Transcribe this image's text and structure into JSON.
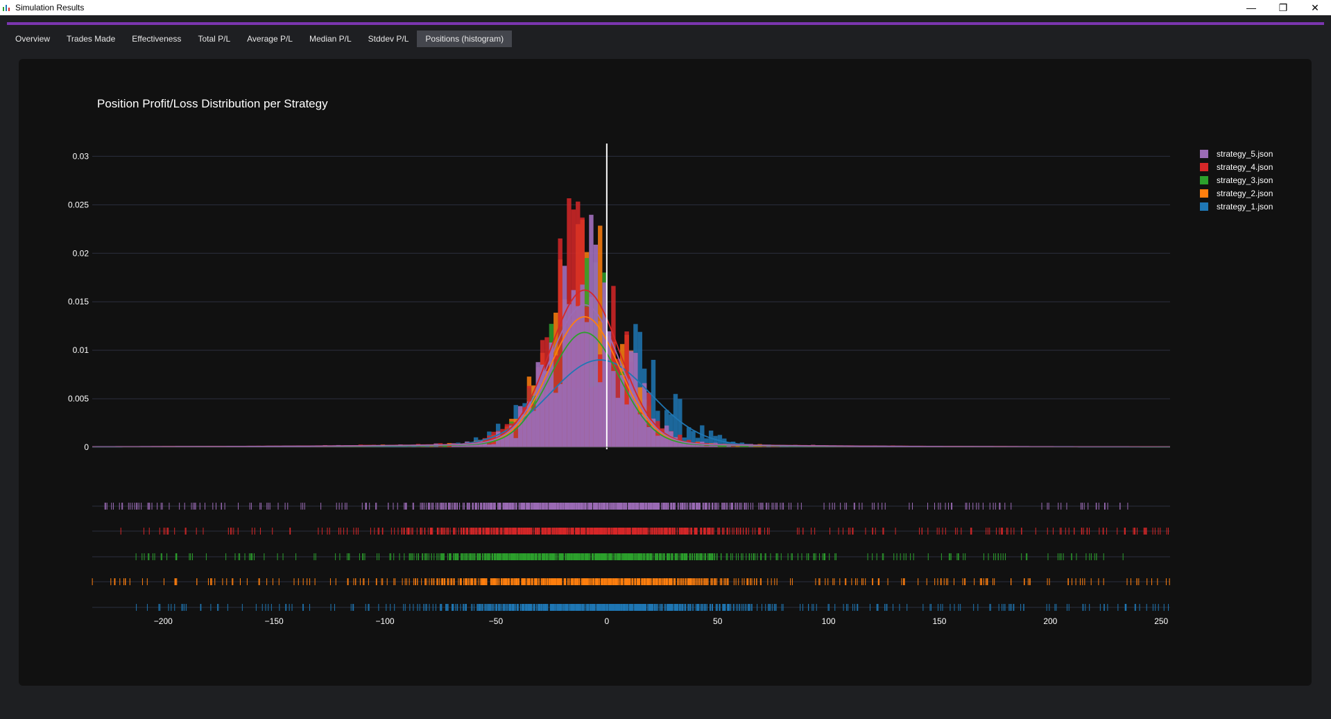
{
  "window": {
    "title": "Simulation Results",
    "minimize_glyph": "—",
    "restore_glyph": "❐",
    "close_glyph": "✕"
  },
  "colors": {
    "accent": "#7b35b0",
    "panel_bg": "#111111",
    "tab_active_bg": "#44464d",
    "grid": "#2c3040",
    "zero_line": "#ffffff"
  },
  "tabs": [
    {
      "label": "Overview",
      "active": false
    },
    {
      "label": "Trades Made",
      "active": false
    },
    {
      "label": "Effectiveness",
      "active": false
    },
    {
      "label": "Total P/L",
      "active": false
    },
    {
      "label": "Average P/L",
      "active": false
    },
    {
      "label": "Median P/L",
      "active": false
    },
    {
      "label": "Stddev P/L",
      "active": false
    },
    {
      "label": "Positions (histogram)",
      "active": true
    }
  ],
  "chart_data": {
    "type": "histogram",
    "title": "Position Profit/Loss Distribution per Strategy",
    "xlabel": "",
    "ylabel": "",
    "xlim": [
      -232,
      254
    ],
    "ylim": [
      0,
      0.0311
    ],
    "y_ticks": [
      0,
      0.005,
      0.01,
      0.015,
      0.02,
      0.025,
      0.03
    ],
    "y_tick_labels": [
      "0",
      "0.005",
      "0.01",
      "0.015",
      "0.02",
      "0.025",
      "0.03"
    ],
    "x_ticks": [
      -200,
      -150,
      -100,
      -50,
      0,
      50,
      100,
      150,
      200,
      250
    ],
    "x_tick_labels": [
      "−200",
      "−150",
      "−100",
      "−50",
      "0",
      "50",
      "100",
      "150",
      "200",
      "250"
    ],
    "vertical_line_x": 0,
    "grid": true,
    "legend_position": "top-right",
    "bins": {
      "start": -232,
      "width": 2
    },
    "rug_plot": true,
    "series": [
      {
        "name": "strategy_5.json",
        "color": "#9b6bb5",
        "peak_x": -10,
        "peak_y": 0.0155,
        "rug_range": [
          -230,
          235
        ]
      },
      {
        "name": "strategy_4.json",
        "color": "#d62728",
        "peak_x": -10,
        "peak_y": 0.0171,
        "rug_range": [
          -220,
          254
        ]
      },
      {
        "name": "strategy_3.json",
        "color": "#2ca02c",
        "peak_x": -10,
        "peak_y": 0.0125,
        "rug_range": [
          -215,
          235
        ]
      },
      {
        "name": "strategy_2.json",
        "color": "#ff7f0e",
        "peak_x": -10,
        "peak_y": 0.0142,
        "rug_range": [
          -232,
          254
        ]
      },
      {
        "name": "strategy_1.json",
        "color": "#1f77b4",
        "peak_x": -3,
        "peak_y": 0.0095,
        "rug_range": [
          -213,
          254
        ]
      }
    ]
  }
}
